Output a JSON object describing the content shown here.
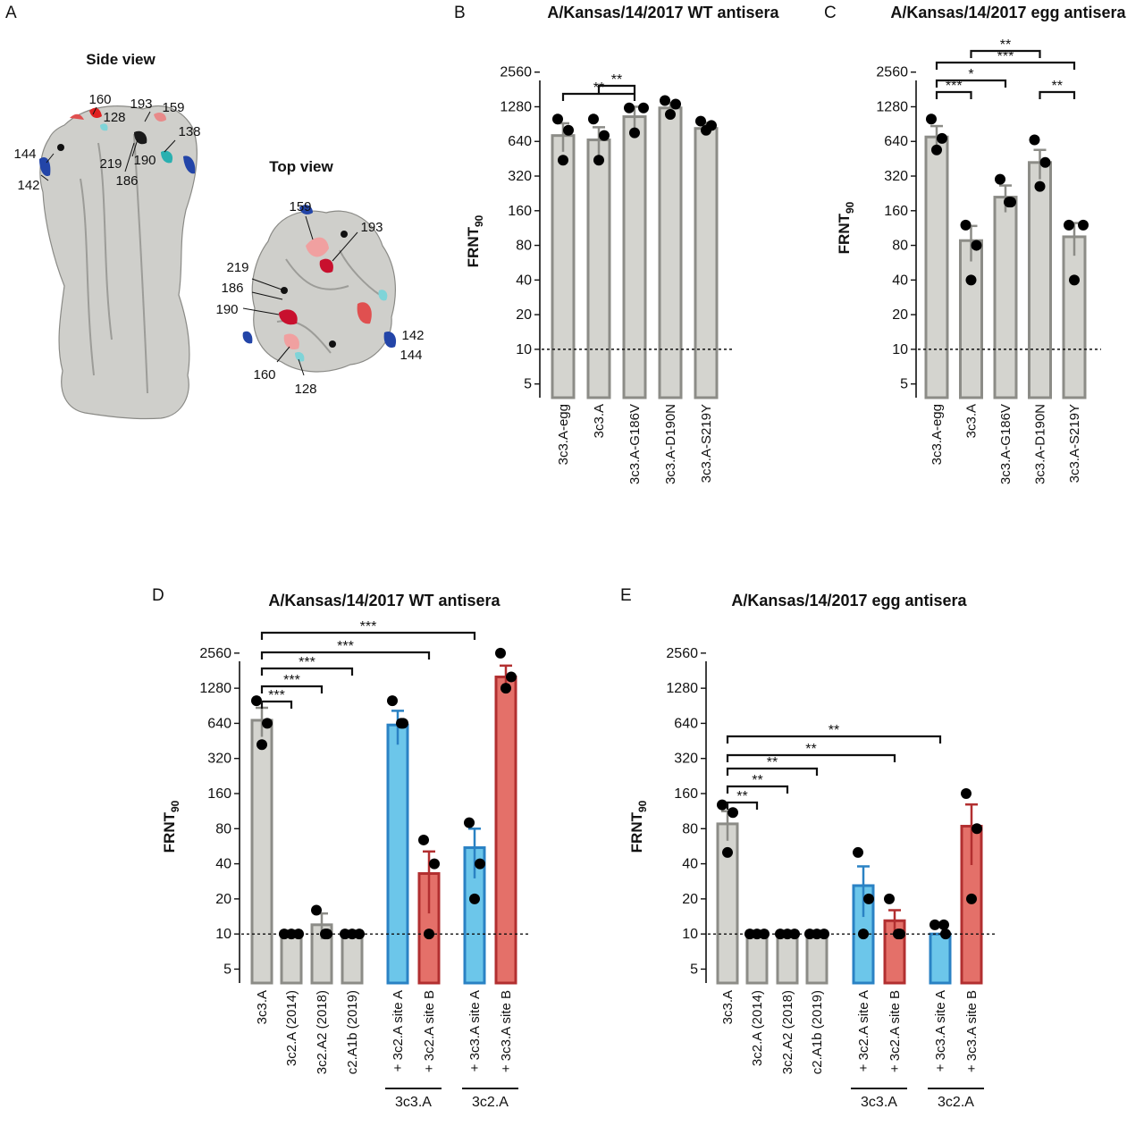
{
  "colors": {
    "grey": "#d4d4cf",
    "grey_edge": "#8c8c87",
    "blue": "#6cc6ea",
    "blue_edge": "#2a82c4",
    "red": "#e47069",
    "red_edge": "#b22f30",
    "point": "#000000"
  },
  "panel_a": {
    "label": "A",
    "side_view": {
      "title": "Side view",
      "residues": [
        "160",
        "128",
        "193",
        "159",
        "138",
        "144",
        "142",
        "219",
        "190",
        "186"
      ]
    },
    "top_view": {
      "title": "Top view",
      "residues": [
        "159",
        "193",
        "219",
        "186",
        "190",
        "142",
        "144",
        "160",
        "128"
      ]
    }
  },
  "chart_data": [
    {
      "panel": "B",
      "type": "bar",
      "title": "A/Kansas/14/2017 WT antisera",
      "ylabel": "FRNT",
      "ylabel_sub": "90",
      "yscale": "log2",
      "ylim": [
        3.8,
        3100
      ],
      "yticks": [
        "2560",
        "1280",
        "640",
        "320",
        "160",
        "80",
        "40",
        "20",
        "10",
        "5"
      ],
      "detection_limit": 10,
      "categories": [
        "3c3.A-egg",
        "3c3.A",
        "3c3.A-G186V",
        "3c3.A-D190N",
        "3c3.A-S219Y"
      ],
      "colors": [
        "grey",
        "grey",
        "grey",
        "grey",
        "grey"
      ],
      "values": [
        720,
        660,
        1050,
        1250,
        830
      ],
      "errors": [
        200,
        190,
        230,
        130,
        100
      ],
      "points": [
        [
          1000,
          800,
          440
        ],
        [
          1000,
          720,
          440
        ],
        [
          1250,
          1250,
          760
        ],
        [
          1450,
          1350,
          1100
        ],
        [
          960,
          880,
          800
        ]
      ],
      "significance": [
        {
          "from": 0,
          "to": 2,
          "label": "**"
        },
        {
          "from": 1,
          "to": 2,
          "label": "**"
        }
      ]
    },
    {
      "panel": "C",
      "type": "bar",
      "title": "A/Kansas/14/2017 egg antisera",
      "ylabel": "FRNT",
      "ylabel_sub": "90",
      "yscale": "log2",
      "ylim": [
        3.8,
        3100
      ],
      "yticks": [
        "2560",
        "1280",
        "640",
        "320",
        "160",
        "80",
        "40",
        "20",
        "10",
        "5"
      ],
      "detection_limit": 10,
      "categories": [
        "3c3.A-egg",
        "3c3.A",
        "3c3.A-G186V",
        "3c3.A-D190N",
        "3c3.A-S219Y"
      ],
      "colors": [
        "grey",
        "grey",
        "grey",
        "grey",
        "grey"
      ],
      "values": [
        700,
        88,
        210,
        420,
        95
      ],
      "errors": [
        170,
        30,
        55,
        120,
        30
      ],
      "points": [
        [
          1000,
          680,
          540
        ],
        [
          120,
          80,
          40
        ],
        [
          300,
          190,
          190
        ],
        [
          660,
          420,
          260
        ],
        [
          120,
          120,
          40
        ]
      ],
      "significance": [
        {
          "from": 0,
          "to": 1,
          "label": "***"
        },
        {
          "from": 0,
          "to": 2,
          "label": "*"
        },
        {
          "from": 0,
          "to": 4,
          "label": "***"
        },
        {
          "from": 1,
          "to": 3,
          "label": "**"
        },
        {
          "from": 3,
          "to": 4,
          "label": "**"
        }
      ]
    },
    {
      "panel": "D",
      "type": "bar",
      "title": "A/Kansas/14/2017 WT antisera",
      "ylabel": "FRNT",
      "ylabel_sub": "90",
      "yscale": "log2",
      "ylim": [
        3.8,
        3100
      ],
      "yticks": [
        "2560",
        "1280",
        "640",
        "320",
        "160",
        "80",
        "40",
        "20",
        "10",
        "5"
      ],
      "detection_limit": 10,
      "categories": [
        "3c3.A",
        "3c2.A (2014)",
        "3c2.A2 (2018)",
        "c2.A1b (2019)",
        "+ 3c2.A site A",
        "+ 3c2.A site B",
        "+ 3c3.A site A",
        "+ 3c3.A site B"
      ],
      "colors": [
        "grey",
        "grey",
        "grey",
        "grey",
        "blue",
        "red",
        "blue",
        "red"
      ],
      "values": [
        680,
        10,
        12,
        10,
        620,
        33,
        55,
        1600
      ],
      "errors": [
        190,
        0,
        3,
        0,
        200,
        18,
        25,
        400
      ],
      "points": [
        [
          1000,
          640,
          420
        ],
        [
          10,
          10,
          10
        ],
        [
          16,
          10,
          10
        ],
        [
          10,
          10,
          10
        ],
        [
          1000,
          640,
          640
        ],
        [
          64,
          40,
          10
        ],
        [
          90,
          40,
          20
        ],
        [
          2560,
          1600,
          1280
        ]
      ],
      "groups": [
        {
          "label": "3c3.A",
          "from": 4,
          "to": 5
        },
        {
          "label": "3c2.A",
          "from": 6,
          "to": 7
        }
      ],
      "significance": [
        {
          "from": 0,
          "to": 1,
          "label": "***"
        },
        {
          "from": 0,
          "to": 2,
          "label": "***"
        },
        {
          "from": 0,
          "to": 3,
          "label": "***"
        },
        {
          "from": 0,
          "to": 5,
          "label": "***"
        },
        {
          "from": 0,
          "to": 6,
          "label": "***"
        }
      ]
    },
    {
      "panel": "E",
      "type": "bar",
      "title": "A/Kansas/14/2017 egg antisera",
      "ylabel": "FRNT",
      "ylabel_sub": "90",
      "yscale": "log2",
      "ylim": [
        3.8,
        3100
      ],
      "yticks": [
        "2560",
        "1280",
        "640",
        "320",
        "160",
        "80",
        "40",
        "20",
        "10",
        "5"
      ],
      "detection_limit": 10,
      "categories": [
        "3c3.A",
        "3c2.A (2014)",
        "3c2.A2 (2018)",
        "c2.A1b (2019)",
        "+ 3c2.A site A",
        "+ 3c2.A site B",
        "+ 3c3.A site A",
        "+ 3c3.A site B"
      ],
      "colors": [
        "grey",
        "grey",
        "grey",
        "grey",
        "blue",
        "red",
        "blue",
        "red"
      ],
      "values": [
        88,
        10,
        10,
        10,
        26,
        13,
        10,
        84
      ],
      "errors": [
        25,
        0,
        0,
        0,
        12,
        3,
        0,
        45
      ],
      "points": [
        [
          128,
          110,
          50
        ],
        [
          10,
          10,
          10
        ],
        [
          10,
          10,
          10
        ],
        [
          10,
          10,
          10
        ],
        [
          50,
          20,
          10
        ],
        [
          20,
          10,
          10
        ],
        [
          12,
          10,
          12
        ],
        [
          160,
          80,
          20
        ]
      ],
      "groups": [
        {
          "label": "3c3.A",
          "from": 4,
          "to": 5
        },
        {
          "label": "3c2.A",
          "from": 6,
          "to": 7
        }
      ],
      "significance": [
        {
          "from": 0,
          "to": 1,
          "label": "**"
        },
        {
          "from": 0,
          "to": 2,
          "label": "**"
        },
        {
          "from": 0,
          "to": 3,
          "label": "**"
        },
        {
          "from": 0,
          "to": 5,
          "label": "**"
        },
        {
          "from": 0,
          "to": 6,
          "label": "**"
        }
      ]
    }
  ]
}
